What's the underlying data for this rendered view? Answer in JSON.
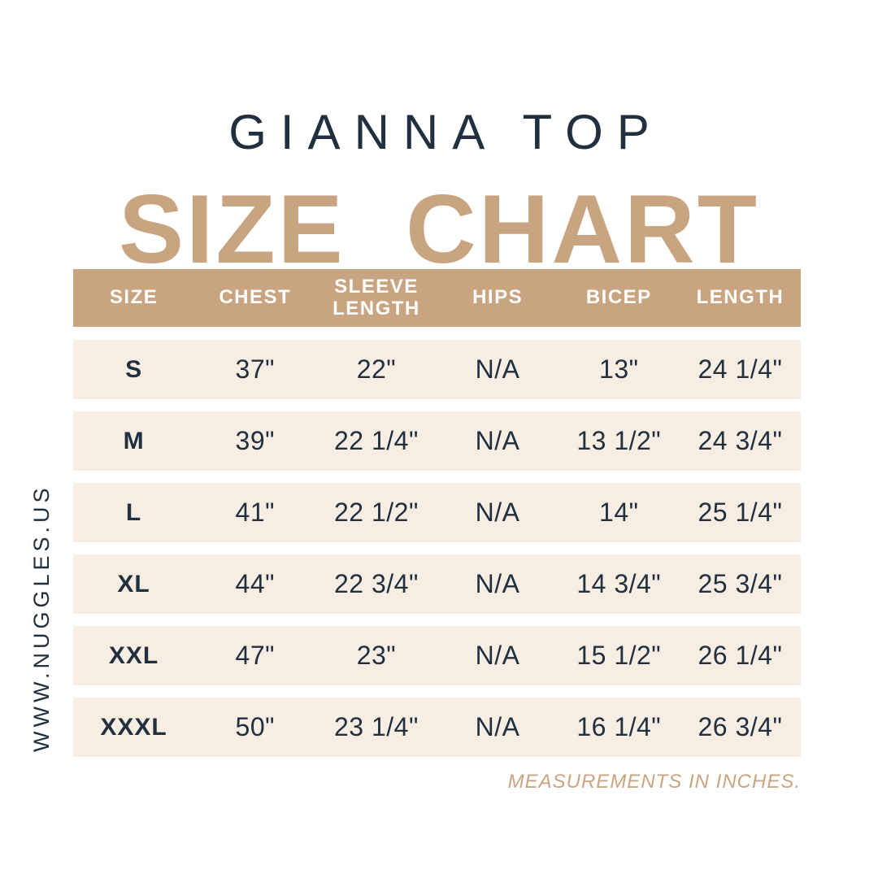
{
  "page": {
    "title": "GIANNA TOP",
    "subtitle": "SIZE CHART",
    "website": "WWW.NUGGLES.US",
    "footnote": "MEASUREMENTS IN INCHES."
  },
  "colors": {
    "navy": "#20303f",
    "tan": "#c9a480",
    "cream": "#f8ede3",
    "background": "#ffffff",
    "header_text": "#ffffff"
  },
  "chart_data": {
    "type": "table",
    "title": "GIANNA TOP SIZE CHART",
    "columns": [
      "SIZE",
      "CHEST",
      "SLEEVE LENGTH",
      "HIPS",
      "BICEP",
      "LENGTH"
    ],
    "rows": [
      [
        "S",
        "37\"",
        "22\"",
        "N/A",
        "13\"",
        "24 1/4\""
      ],
      [
        "M",
        "39\"",
        "22 1/4\"",
        "N/A",
        "13 1/2\"",
        "24 3/4\""
      ],
      [
        "L",
        "41\"",
        "22 1/2\"",
        "N/A",
        "14\"",
        "25 1/4\""
      ],
      [
        "XL",
        "44\"",
        "22 3/4\"",
        "N/A",
        "14 3/4\"",
        "25 3/4\""
      ],
      [
        "XXL",
        "47\"",
        "23\"",
        "N/A",
        "15 1/2\"",
        "26 1/4\""
      ],
      [
        "XXXL",
        "50\"",
        "23 1/4\"",
        "N/A",
        "16 1/4\"",
        "26 3/4\""
      ]
    ],
    "units": "inches",
    "legend_position": "none",
    "grid": false
  }
}
